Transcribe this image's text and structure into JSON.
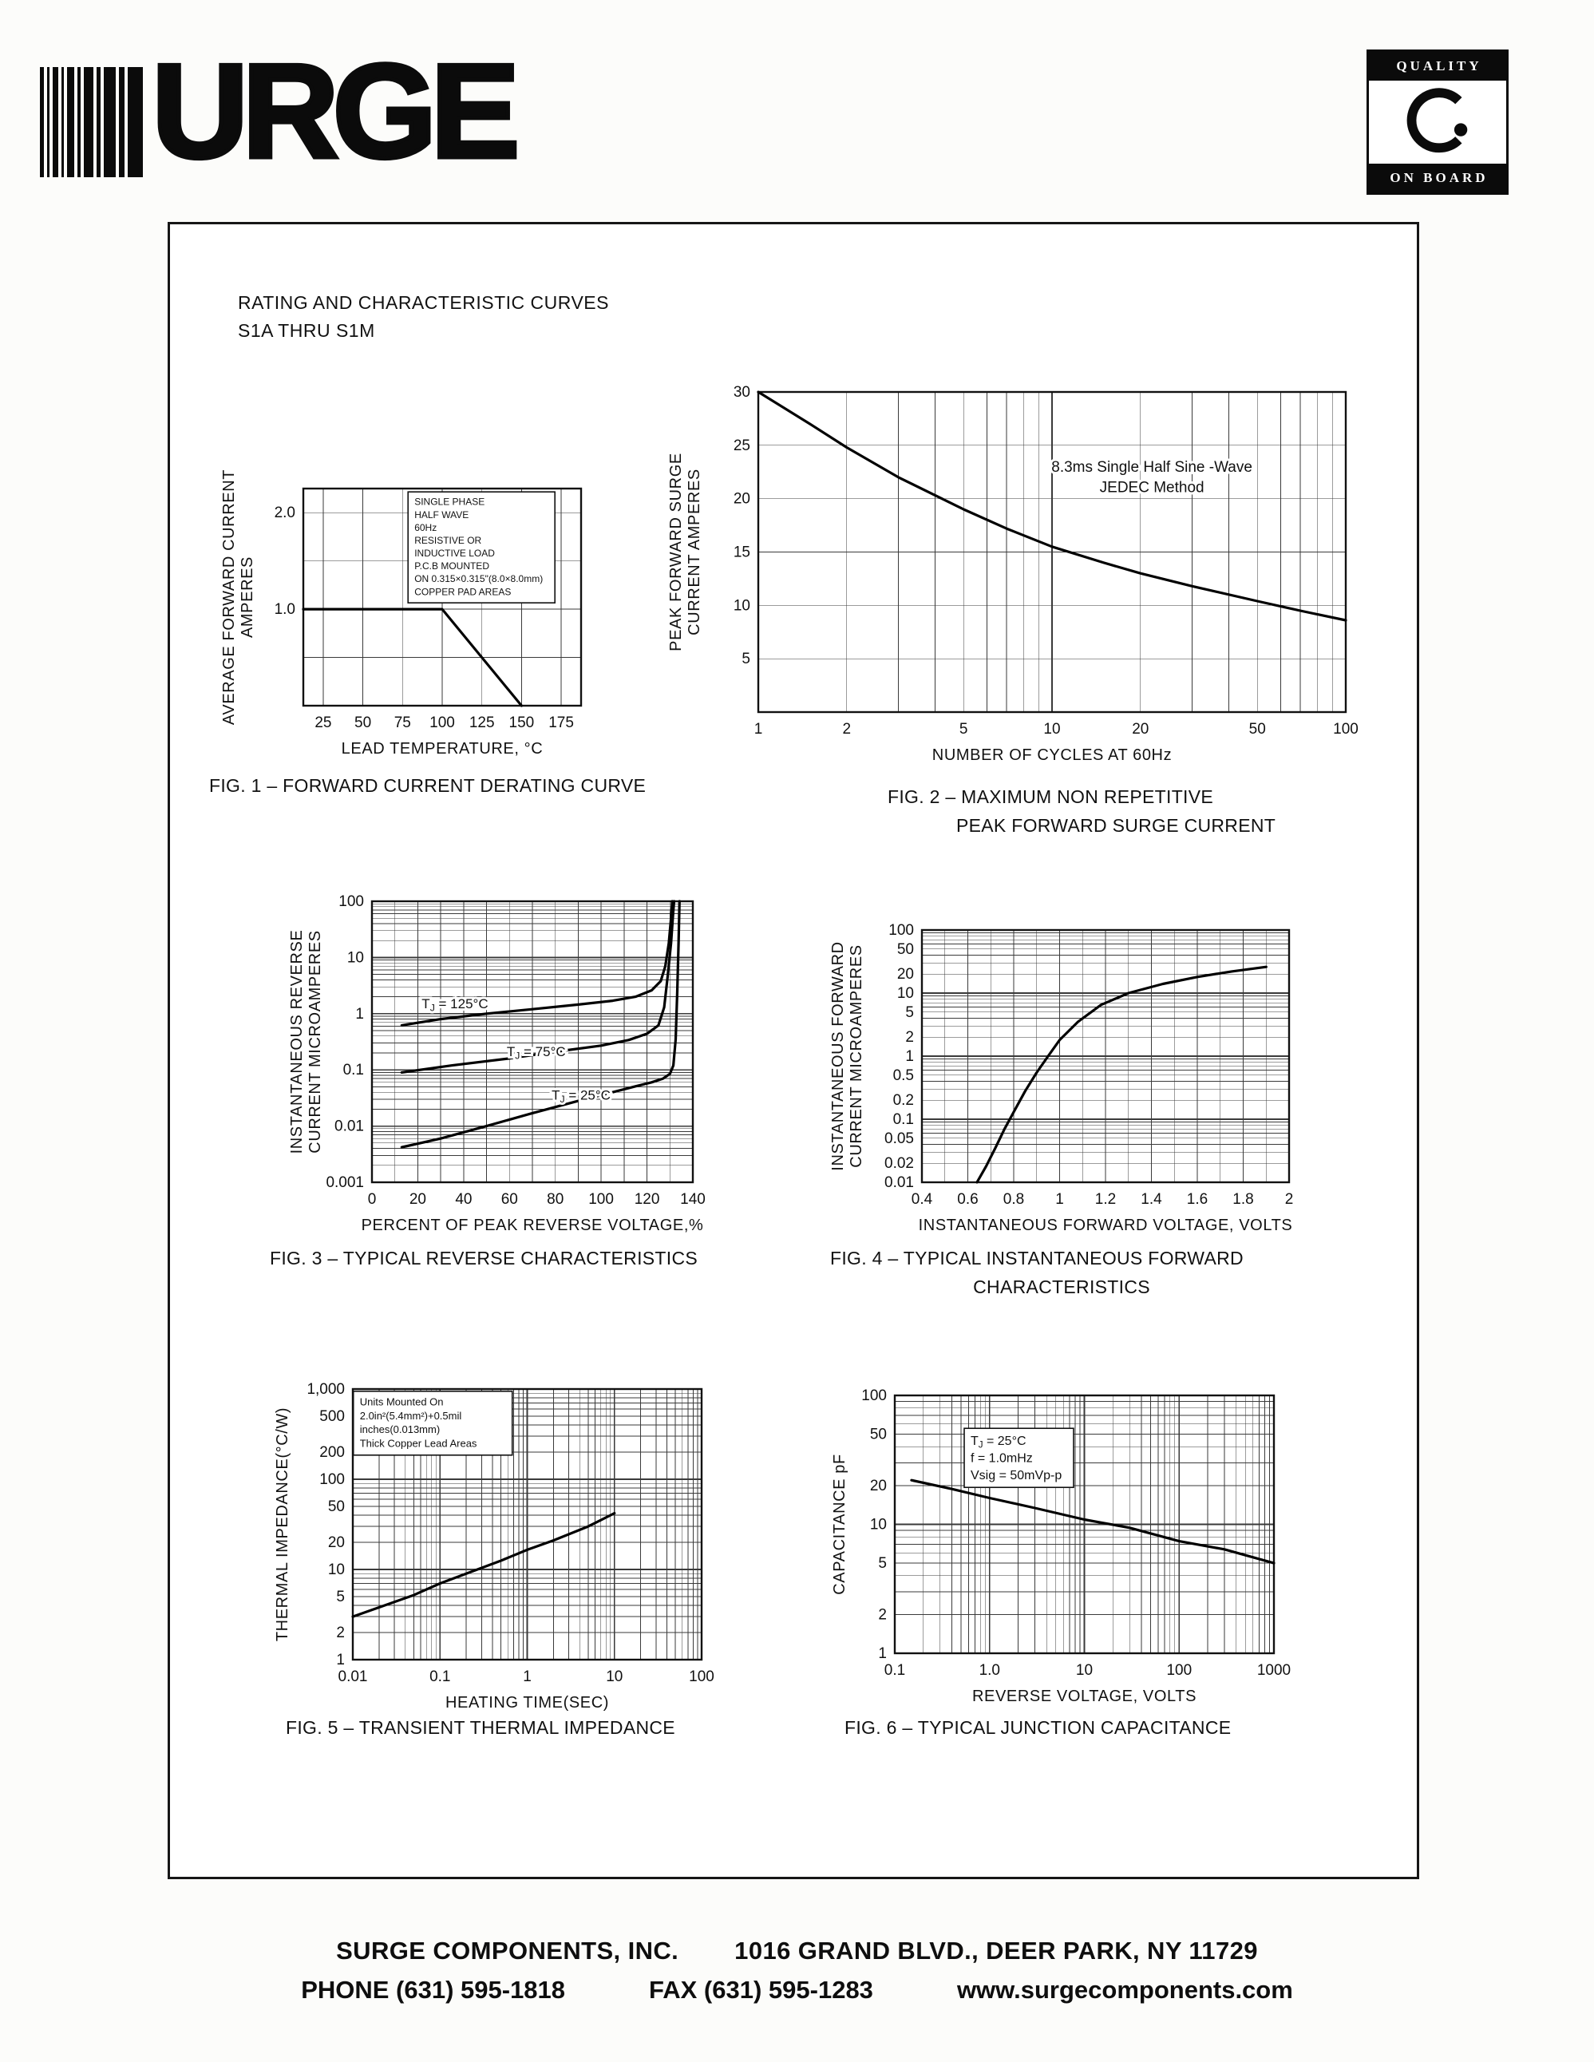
{
  "header": {
    "logo_text": "URGE",
    "quality_badge": {
      "top": "QUALITY",
      "bottom": "ON BOARD"
    }
  },
  "title_block": {
    "line1": "RATING AND CHARACTERISTIC CURVES",
    "line2": "S1A THRU S1M"
  },
  "figures": [
    {
      "caption": "FIG. 1 – FORWARD CURRENT DERATING CURVE"
    },
    {
      "caption": "FIG. 2 – MAXIMUM NON REPETITIVE",
      "caption2": "PEAK FORWARD SURGE CURRENT"
    },
    {
      "caption": "FIG. 3 – TYPICAL REVERSE CHARACTERISTICS"
    },
    {
      "caption": "FIG. 4 – TYPICAL INSTANTANEOUS FORWARD",
      "caption2": "CHARACTERISTICS"
    },
    {
      "caption": "FIG. 5 – TRANSIENT THERMAL IMPEDANCE"
    },
    {
      "caption": "FIG. 6 – TYPICAL JUNCTION CAPACITANCE"
    }
  ],
  "chart_data": [
    {
      "id": "fig1",
      "type": "line",
      "xlabel": "LEAD  TEMPERATURE, °C",
      "ylabel": [
        "AVERAGE FORWARD CURRENT",
        "AMPERES"
      ],
      "x": {
        "type": "linear",
        "min": 12.5,
        "max": 187.5,
        "grid": {
          "start": 25,
          "step": 25
        },
        "ticks": [
          25,
          50,
          75,
          100,
          125,
          150,
          175
        ]
      },
      "y": {
        "type": "linear",
        "min": 0,
        "max": 2.25,
        "grid": {
          "start": 0.5,
          "step": 0.5
        },
        "ticks": [
          {
            "v": 1,
            "label": "1.0"
          },
          {
            "v": 2,
            "label": "2.0"
          }
        ]
      },
      "series": [
        {
          "name": "average-forward-current-limit",
          "points": [
            [
              12.5,
              1.0
            ],
            [
              100,
              1.0
            ],
            [
              150,
              0
            ]
          ]
        }
      ],
      "annotations": [
        {
          "fx": 0.4,
          "fy": 0.03,
          "fs": 12,
          "boxed": true,
          "anchor": "start",
          "lines": [
            "SINGLE PHASE",
            "HALF WAVE",
            "60Hz",
            "RESISTIVE OR",
            "INDUCTIVE LOAD",
            "P.C.B MOUNTED",
            "ON 0.315×0.315\"(8.0×8.0mm)",
            "COPPER PAD AREAS"
          ]
        }
      ]
    },
    {
      "id": "fig2",
      "type": "line",
      "xlabel": "NUMBER  OF CYCLES  AT 60Hz",
      "ylabel": [
        "PEAK  FORWARD  SURGE",
        "CURRENT   AMPERES"
      ],
      "x": {
        "type": "log",
        "min": 1,
        "max": 100,
        "grid": "log",
        "ticks": [
          1,
          2,
          5,
          10,
          20,
          50,
          100
        ]
      },
      "y": {
        "type": "linear",
        "min": 0,
        "max": 30,
        "grid": {
          "start": 5,
          "step": 5
        },
        "ticks": [
          5,
          10,
          15,
          20,
          25,
          30
        ]
      },
      "series": [
        {
          "name": "peak-forward-surge-current",
          "points": [
            [
              1,
              30
            ],
            [
              1.5,
              27
            ],
            [
              2,
              24.8
            ],
            [
              3,
              22
            ],
            [
              5,
              19
            ],
            [
              7,
              17.2
            ],
            [
              10,
              15.5
            ],
            [
              15,
              14
            ],
            [
              20,
              13
            ],
            [
              30,
              11.8
            ],
            [
              50,
              10.4
            ],
            [
              70,
              9.5
            ],
            [
              100,
              8.6
            ]
          ]
        }
      ],
      "annotations": [
        {
          "fx": 0.67,
          "fy": 0.2,
          "fs": 19,
          "boxed": false,
          "anchor": "middle",
          "lines": [
            "8.3ms  Single  Half  Sine -Wave",
            "JEDEC  Method"
          ]
        }
      ]
    },
    {
      "id": "fig3",
      "type": "line",
      "xlabel": "PERCENT  OF  PEAK  REVERSE  VOLTAGE,%",
      "ylabel": [
        "INSTANTANEOUS REVERSE",
        "CURRENT  MICROAMPERES"
      ],
      "x": {
        "type": "linear",
        "min": 0,
        "max": 140,
        "grid": {
          "start": 10,
          "step": 10
        },
        "ticks": [
          0,
          20,
          40,
          60,
          80,
          100,
          120,
          140
        ]
      },
      "y": {
        "type": "log",
        "min": 0.001,
        "max": 100,
        "grid": "log",
        "ticks": [
          100,
          10,
          1,
          0.1,
          0.01,
          0.001
        ]
      },
      "series": [
        {
          "name": "TJ = 125°C",
          "points": [
            [
              13,
              0.62
            ],
            [
              30,
              0.8
            ],
            [
              50,
              1.0
            ],
            [
              70,
              1.2
            ],
            [
              90,
              1.45
            ],
            [
              105,
              1.7
            ],
            [
              115,
              2.0
            ],
            [
              122,
              2.6
            ],
            [
              126,
              3.8
            ],
            [
              128,
              7
            ],
            [
              129.5,
              18
            ],
            [
              130.5,
              50
            ],
            [
              131,
              100
            ]
          ]
        },
        {
          "name": "TJ = 75°C",
          "points": [
            [
              13,
              0.09
            ],
            [
              35,
              0.12
            ],
            [
              60,
              0.16
            ],
            [
              80,
              0.21
            ],
            [
              100,
              0.27
            ],
            [
              112,
              0.34
            ],
            [
              120,
              0.44
            ],
            [
              125,
              0.62
            ],
            [
              127.5,
              1.3
            ],
            [
              129,
              4.5
            ],
            [
              130.5,
              18
            ],
            [
              131.5,
              70
            ],
            [
              131.8,
              100
            ]
          ]
        },
        {
          "name": "TJ = 25°C",
          "points": [
            [
              13,
              0.0042
            ],
            [
              30,
              0.006
            ],
            [
              50,
              0.01
            ],
            [
              70,
              0.017
            ],
            [
              90,
              0.028
            ],
            [
              105,
              0.04
            ],
            [
              115,
              0.051
            ],
            [
              122,
              0.06
            ],
            [
              127,
              0.07
            ],
            [
              130,
              0.085
            ],
            [
              131.5,
              0.12
            ],
            [
              132.5,
              0.35
            ],
            [
              133.2,
              2.5
            ],
            [
              133.8,
              20
            ],
            [
              134.2,
              100
            ]
          ]
        }
      ],
      "annotations": [
        {
          "fx": 0.155,
          "fy": 0.33,
          "fs": 17,
          "boxed": false,
          "anchor": "start",
          "lines": [
            "TJ = 125°C"
          ]
        },
        {
          "fx": 0.42,
          "fy": 0.5,
          "fs": 17,
          "boxed": false,
          "anchor": "start",
          "lines": [
            "TJ = 75°C"
          ]
        },
        {
          "fx": 0.56,
          "fy": 0.655,
          "fs": 17,
          "boxed": false,
          "anchor": "start",
          "lines": [
            "TJ = 25°C"
          ]
        }
      ]
    },
    {
      "id": "fig4",
      "type": "line",
      "xlabel": "INSTANTANEOUS  FORWARD  VOLTAGE,  VOLTS",
      "ylabel": [
        "INSTANTANEOUS FORWARD",
        "CURRENT  MICROAMPERES"
      ],
      "x": {
        "type": "linear",
        "min": 0.4,
        "max": 2,
        "grid": {
          "start": 0.5,
          "step": 0.1
        },
        "ticks": [
          0.4,
          0.6,
          0.8,
          1,
          1.2,
          1.4,
          1.6,
          1.8,
          2
        ]
      },
      "y": {
        "type": "log",
        "min": 0.01,
        "max": 100,
        "grid": "log",
        "ticks": [
          100,
          50,
          20,
          10,
          5,
          2,
          1,
          0.5,
          0.2,
          0.1,
          0.05,
          0.02,
          0.01
        ]
      },
      "series": [
        {
          "name": "instantaneous-forward-current",
          "points": [
            [
              0.64,
              0.01
            ],
            [
              0.68,
              0.018
            ],
            [
              0.72,
              0.035
            ],
            [
              0.76,
              0.07
            ],
            [
              0.8,
              0.13
            ],
            [
              0.85,
              0.28
            ],
            [
              0.9,
              0.55
            ],
            [
              0.95,
              1.0
            ],
            [
              1.0,
              1.8
            ],
            [
              1.08,
              3.5
            ],
            [
              1.18,
              6.5
            ],
            [
              1.3,
              10
            ],
            [
              1.45,
              14
            ],
            [
              1.6,
              18
            ],
            [
              1.75,
              22
            ],
            [
              1.9,
              26
            ]
          ]
        }
      ],
      "annotations": []
    },
    {
      "id": "fig5",
      "type": "line",
      "xlabel": "HEATING  TIME(SEC)",
      "ylabel": [
        "THERMAL  IMPEDANCE(°C/W)"
      ],
      "x": {
        "type": "log",
        "min": 0.01,
        "max": 100,
        "grid": "log",
        "ticks": [
          0.01,
          0.1,
          1,
          10,
          100
        ]
      },
      "y": {
        "type": "log",
        "min": 1,
        "max": 1000,
        "grid": "log",
        "ticks": [
          1,
          2,
          5,
          10,
          20,
          50,
          100,
          200,
          500,
          {
            "v": 1000,
            "label": "1,000"
          }
        ]
      },
      "series": [
        {
          "name": "transient-thermal-impedance",
          "points": [
            [
              0.01,
              3
            ],
            [
              0.02,
              3.8
            ],
            [
              0.05,
              5.2
            ],
            [
              0.1,
              7
            ],
            [
              0.2,
              9
            ],
            [
              0.5,
              12.5
            ],
            [
              1,
              16.5
            ],
            [
              2,
              21
            ],
            [
              5,
              30
            ],
            [
              10,
              42
            ]
          ]
        }
      ],
      "annotations": [
        {
          "fx": 0.02,
          "fy": 0.02,
          "fs": 13,
          "boxed": true,
          "anchor": "start",
          "lines": [
            "Units  Mounted  On",
            "2.0in²(5.4mm²)+0.5mil",
            "inches(0.013mm)",
            "Thick  Copper  Lead  Areas"
          ]
        }
      ]
    },
    {
      "id": "fig6",
      "type": "line",
      "xlabel": "REVERSE  VOLTAGE,  VOLTS",
      "ylabel": [
        "CAPACITANCE   pF"
      ],
      "x": {
        "type": "log",
        "min": 0.1,
        "max": 1000,
        "grid": "log",
        "ticks": [
          {
            "v": 0.1,
            "label": "0.1"
          },
          {
            "v": 1,
            "label": "1.0"
          },
          {
            "v": 10,
            "label": "10"
          },
          {
            "v": 100,
            "label": "100"
          },
          {
            "v": 1000,
            "label": "1000"
          }
        ]
      },
      "y": {
        "type": "log",
        "min": 1,
        "max": 100,
        "grid": "log",
        "ticks": [
          1,
          2,
          5,
          10,
          20,
          50,
          100
        ]
      },
      "series": [
        {
          "name": "junction-capacitance",
          "points": [
            [
              0.15,
              22
            ],
            [
              0.4,
              18.8
            ],
            [
              1,
              16
            ],
            [
              3,
              13.4
            ],
            [
              10,
              10.9
            ],
            [
              30,
              9.4
            ],
            [
              100,
              7.4
            ],
            [
              300,
              6.4
            ],
            [
              1000,
              5
            ]
          ]
        }
      ],
      "annotations": [
        {
          "fx": 0.2,
          "fy": 0.14,
          "fs": 16,
          "boxed": true,
          "anchor": "start",
          "lines": [
            "TJ = 25°C",
            "f = 1.0mHz",
            "Vsig = 50mVp-p"
          ]
        }
      ]
    }
  ],
  "footer": {
    "company": "SURGE COMPONENTS, INC.",
    "address": "1016 GRAND BLVD., DEER PARK, NY  11729",
    "phone": "PHONE (631) 595-1818",
    "fax": "FAX  (631) 595-1283",
    "website": "www.surgecomponents.com"
  }
}
